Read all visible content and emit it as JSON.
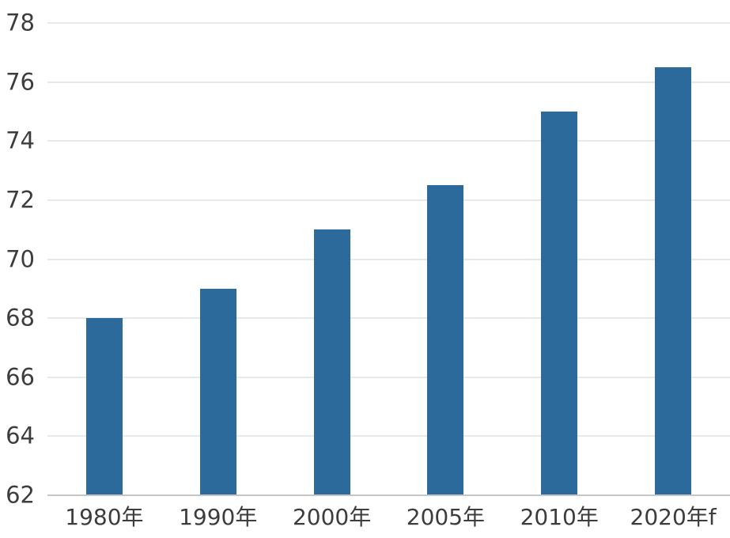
{
  "chart_data": {
    "type": "bar",
    "categories": [
      "1980年",
      "1990年",
      "2000年",
      "2005年",
      "2010年",
      "2020年f"
    ],
    "values": [
      68,
      69,
      71,
      72.5,
      75,
      76.5
    ],
    "title": "",
    "xlabel": "",
    "ylabel": "",
    "ylim": [
      62,
      78
    ],
    "yticks": [
      62,
      64,
      66,
      68,
      70,
      72,
      74,
      76,
      78
    ],
    "grid": true,
    "legend": false,
    "colors": {
      "bar": "#2d6a9c",
      "gridline": "#e8e8e8",
      "axis_line": "#c6c6c6",
      "tick_label": "#3d3d3d",
      "background": "#ffffff"
    }
  }
}
